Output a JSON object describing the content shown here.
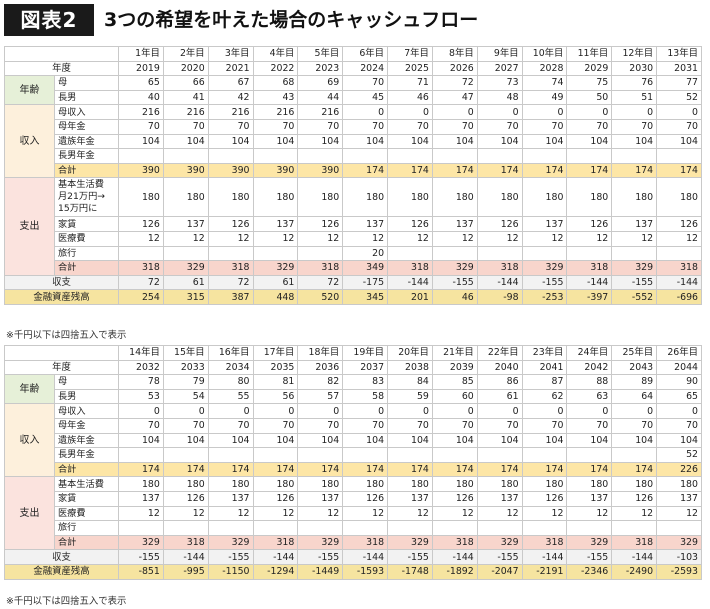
{
  "header": {
    "figure_label": "図表2",
    "title": "3つの希望を叶えた場合のキャッシュフロー"
  },
  "labels": {
    "nendo": "年度",
    "age": "年齢",
    "income": "収入",
    "expense": "支出",
    "balance": "収支",
    "assets": "金融資産残高"
  },
  "note": "※千円以下は四捨五入で表示",
  "tables": [
    {
      "nth": [
        "1年目",
        "2年目",
        "3年目",
        "4年目",
        "5年目",
        "6年目",
        "7年目",
        "8年目",
        "9年目",
        "10年目",
        "11年目",
        "12年目",
        "13年目"
      ],
      "years": [
        "2019",
        "2020",
        "2021",
        "2022",
        "2023",
        "2024",
        "2025",
        "2026",
        "2027",
        "2028",
        "2029",
        "2030",
        "2031"
      ],
      "age": [
        {
          "label": "母",
          "values": [
            "65",
            "66",
            "67",
            "68",
            "69",
            "70",
            "71",
            "72",
            "73",
            "74",
            "75",
            "76",
            "77"
          ]
        },
        {
          "label": "長男",
          "values": [
            "40",
            "41",
            "42",
            "43",
            "44",
            "45",
            "46",
            "47",
            "48",
            "49",
            "50",
            "51",
            "52"
          ]
        }
      ],
      "income": [
        {
          "label": "母収入",
          "values": [
            "216",
            "216",
            "216",
            "216",
            "216",
            "0",
            "0",
            "0",
            "0",
            "0",
            "0",
            "0",
            "0"
          ]
        },
        {
          "label": "母年金",
          "values": [
            "70",
            "70",
            "70",
            "70",
            "70",
            "70",
            "70",
            "70",
            "70",
            "70",
            "70",
            "70",
            "70"
          ]
        },
        {
          "label": "遺族年金",
          "values": [
            "104",
            "104",
            "104",
            "104",
            "104",
            "104",
            "104",
            "104",
            "104",
            "104",
            "104",
            "104",
            "104"
          ]
        },
        {
          "label": "長男年金",
          "values": [
            "",
            "",
            "",
            "",
            "",
            "",
            "",
            "",
            "",
            "",
            "",
            "",
            ""
          ]
        }
      ],
      "income_total": {
        "label": "合計",
        "values": [
          "390",
          "390",
          "390",
          "390",
          "390",
          "174",
          "174",
          "174",
          "174",
          "174",
          "174",
          "174",
          "174"
        ]
      },
      "expense": [
        {
          "label": "基本生活費 月21万円→ 15万円に",
          "values": [
            "180",
            "180",
            "180",
            "180",
            "180",
            "180",
            "180",
            "180",
            "180",
            "180",
            "180",
            "180",
            "180"
          ]
        },
        {
          "label": "家賃",
          "values": [
            "126",
            "137",
            "126",
            "137",
            "126",
            "137",
            "126",
            "137",
            "126",
            "137",
            "126",
            "137",
            "126"
          ]
        },
        {
          "label": "医療費",
          "values": [
            "12",
            "12",
            "12",
            "12",
            "12",
            "12",
            "12",
            "12",
            "12",
            "12",
            "12",
            "12",
            "12"
          ]
        },
        {
          "label": "旅行",
          "values": [
            "",
            "",
            "",
            "",
            "",
            "20",
            "",
            "",
            "",
            "",
            "",
            "",
            ""
          ]
        }
      ],
      "expense_total": {
        "label": "合計",
        "values": [
          "318",
          "329",
          "318",
          "329",
          "318",
          "349",
          "318",
          "329",
          "318",
          "329",
          "318",
          "329",
          "318"
        ]
      },
      "balance": [
        "72",
        "61",
        "72",
        "61",
        "72",
        "-175",
        "-144",
        "-155",
        "-144",
        "-155",
        "-144",
        "-155",
        "-144"
      ],
      "assets": [
        "254",
        "315",
        "387",
        "448",
        "520",
        "345",
        "201",
        "46",
        "-98",
        "-253",
        "-397",
        "-552",
        "-696"
      ]
    },
    {
      "nth": [
        "14年目",
        "15年目",
        "16年目",
        "17年目",
        "18年目",
        "19年目",
        "20年目",
        "21年目",
        "22年目",
        "23年目",
        "24年目",
        "25年目",
        "26年目"
      ],
      "years": [
        "2032",
        "2033",
        "2034",
        "2035",
        "2036",
        "2037",
        "2038",
        "2039",
        "2040",
        "2041",
        "2042",
        "2043",
        "2044"
      ],
      "age": [
        {
          "label": "母",
          "values": [
            "78",
            "79",
            "80",
            "81",
            "82",
            "83",
            "84",
            "85",
            "86",
            "87",
            "88",
            "89",
            "90"
          ]
        },
        {
          "label": "長男",
          "values": [
            "53",
            "54",
            "55",
            "56",
            "57",
            "58",
            "59",
            "60",
            "61",
            "62",
            "63",
            "64",
            "65"
          ]
        }
      ],
      "income": [
        {
          "label": "母収入",
          "values": [
            "0",
            "0",
            "0",
            "0",
            "0",
            "0",
            "0",
            "0",
            "0",
            "0",
            "0",
            "0",
            "0"
          ]
        },
        {
          "label": "母年金",
          "values": [
            "70",
            "70",
            "70",
            "70",
            "70",
            "70",
            "70",
            "70",
            "70",
            "70",
            "70",
            "70",
            "70"
          ]
        },
        {
          "label": "遺族年金",
          "values": [
            "104",
            "104",
            "104",
            "104",
            "104",
            "104",
            "104",
            "104",
            "104",
            "104",
            "104",
            "104",
            "104"
          ]
        },
        {
          "label": "長男年金",
          "values": [
            "",
            "",
            "",
            "",
            "",
            "",
            "",
            "",
            "",
            "",
            "",
            "",
            "52"
          ]
        }
      ],
      "income_total": {
        "label": "合計",
        "values": [
          "174",
          "174",
          "174",
          "174",
          "174",
          "174",
          "174",
          "174",
          "174",
          "174",
          "174",
          "174",
          "226"
        ]
      },
      "expense": [
        {
          "label": "基本生活費",
          "values": [
            "180",
            "180",
            "180",
            "180",
            "180",
            "180",
            "180",
            "180",
            "180",
            "180",
            "180",
            "180",
            "180"
          ]
        },
        {
          "label": "家賃",
          "values": [
            "137",
            "126",
            "137",
            "126",
            "137",
            "126",
            "137",
            "126",
            "137",
            "126",
            "137",
            "126",
            "137"
          ]
        },
        {
          "label": "医療費",
          "values": [
            "12",
            "12",
            "12",
            "12",
            "12",
            "12",
            "12",
            "12",
            "12",
            "12",
            "12",
            "12",
            "12"
          ]
        },
        {
          "label": "旅行",
          "values": [
            "",
            "",
            "",
            "",
            "",
            "",
            "",
            "",
            "",
            "",
            "",
            "",
            ""
          ]
        }
      ],
      "expense_total": {
        "label": "合計",
        "values": [
          "329",
          "318",
          "329",
          "318",
          "329",
          "318",
          "329",
          "318",
          "329",
          "318",
          "329",
          "318",
          "329"
        ]
      },
      "balance": [
        "-155",
        "-144",
        "-155",
        "-144",
        "-155",
        "-144",
        "-155",
        "-144",
        "-155",
        "-144",
        "-155",
        "-144",
        "-103"
      ],
      "assets": [
        "-851",
        "-995",
        "-1150",
        "-1294",
        "-1449",
        "-1593",
        "-1748",
        "-1892",
        "-2047",
        "-2191",
        "-2346",
        "-2490",
        "-2593"
      ]
    }
  ]
}
